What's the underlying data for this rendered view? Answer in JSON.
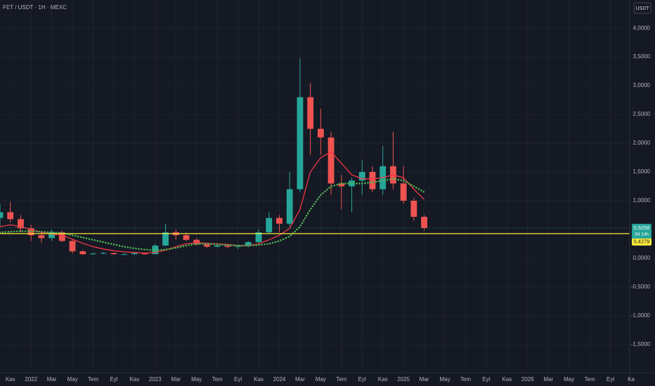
{
  "chart_data": {
    "type": "candlestick",
    "title": "FET / USDT · 1H · MEXC",
    "currency": "USDT",
    "x": [
      "2021-10",
      "2021-11",
      "2021-12",
      "2022-01",
      "2022-02",
      "2022-03",
      "2022-04",
      "2022-05",
      "2022-06",
      "2022-07",
      "2022-08",
      "2022-09",
      "2022-10",
      "2022-11",
      "2022-12",
      "2023-01",
      "2023-02",
      "2023-03",
      "2023-04",
      "2023-05",
      "2023-06",
      "2023-07",
      "2023-08",
      "2023-09",
      "2023-10",
      "2023-11",
      "2023-12",
      "2024-01",
      "2024-02",
      "2024-03",
      "2024-04",
      "2024-05",
      "2024-06",
      "2024-07",
      "2024-08",
      "2024-09",
      "2024-10",
      "2024-11",
      "2024-12",
      "2025-01",
      "2025-02",
      "2025-03"
    ],
    "open": [
      0.7,
      0.8,
      0.68,
      0.52,
      0.4,
      0.35,
      0.45,
      0.3,
      0.12,
      0.07,
      0.08,
      0.09,
      0.07,
      0.07,
      0.09,
      0.07,
      0.22,
      0.45,
      0.4,
      0.32,
      0.24,
      0.2,
      0.22,
      0.2,
      0.21,
      0.28,
      0.45,
      0.7,
      0.6,
      1.2,
      2.8,
      2.25,
      2.1,
      1.3,
      1.25,
      1.35,
      1.5,
      1.2,
      1.6,
      1.3,
      1.0,
      0.72
    ],
    "high": [
      0.95,
      0.98,
      0.75,
      0.58,
      0.45,
      0.5,
      0.48,
      0.32,
      0.14,
      0.1,
      0.11,
      0.1,
      0.09,
      0.1,
      0.1,
      0.25,
      0.6,
      0.5,
      0.45,
      0.35,
      0.26,
      0.26,
      0.24,
      0.22,
      0.3,
      0.5,
      0.8,
      0.75,
      1.5,
      3.48,
      3.05,
      2.6,
      2.2,
      1.45,
      1.4,
      1.7,
      1.6,
      1.95,
      2.2,
      1.6,
      1.05,
      0.75
    ],
    "low": [
      0.55,
      0.62,
      0.45,
      0.3,
      0.27,
      0.3,
      0.28,
      0.08,
      0.06,
      0.06,
      0.07,
      0.06,
      0.06,
      0.06,
      0.06,
      0.07,
      0.21,
      0.32,
      0.3,
      0.22,
      0.18,
      0.19,
      0.17,
      0.16,
      0.19,
      0.26,
      0.42,
      0.45,
      0.55,
      1.15,
      1.8,
      1.8,
      1.1,
      0.85,
      0.8,
      1.1,
      1.15,
      1.1,
      1.2,
      0.95,
      0.65,
      0.48
    ],
    "close": [
      0.8,
      0.68,
      0.52,
      0.4,
      0.35,
      0.45,
      0.3,
      0.12,
      0.07,
      0.08,
      0.09,
      0.07,
      0.07,
      0.09,
      0.07,
      0.22,
      0.45,
      0.4,
      0.32,
      0.24,
      0.2,
      0.22,
      0.2,
      0.21,
      0.28,
      0.45,
      0.7,
      0.6,
      1.2,
      2.8,
      2.25,
      2.1,
      1.3,
      1.25,
      1.35,
      1.5,
      1.2,
      1.6,
      1.3,
      1.0,
      0.72,
      0.5258
    ],
    "up_color": "#26a69a",
    "down_color": "#ef5350",
    "lines": [
      {
        "color": "#f23645",
        "style": "solid",
        "values": [
          0.55,
          0.58,
          0.55,
          0.5,
          0.45,
          0.42,
          0.4,
          0.33,
          0.26,
          0.2,
          0.16,
          0.13,
          0.11,
          0.1,
          0.09,
          0.1,
          0.14,
          0.2,
          0.25,
          0.27,
          0.26,
          0.25,
          0.24,
          0.22,
          0.22,
          0.25,
          0.32,
          0.4,
          0.52,
          0.85,
          1.5,
          1.75,
          1.85,
          1.65,
          1.45,
          1.38,
          1.38,
          1.4,
          1.45,
          1.4,
          1.2,
          1.02
        ]
      },
      {
        "color": "#4caf50",
        "style": "dotted",
        "values": [
          0.45,
          0.46,
          0.47,
          0.47,
          0.46,
          0.45,
          0.44,
          0.4,
          0.36,
          0.32,
          0.28,
          0.24,
          0.2,
          0.17,
          0.15,
          0.14,
          0.15,
          0.18,
          0.22,
          0.25,
          0.25,
          0.24,
          0.23,
          0.22,
          0.22,
          0.23,
          0.25,
          0.3,
          0.38,
          0.55,
          0.85,
          1.1,
          1.25,
          1.3,
          1.3,
          1.3,
          1.32,
          1.35,
          1.38,
          1.35,
          1.25,
          1.15
        ]
      }
    ],
    "price_line": {
      "value": 0.4279,
      "label": "0,4279",
      "color": "#ffeb3b"
    },
    "last_price": {
      "value": 0.5258,
      "label": "0,5258",
      "countdown": "3d 14h",
      "color": "#26a69a"
    },
    "xlim": [
      "2021-10",
      "2026-11"
    ],
    "ylim": [
      -1.99,
      4.49
    ],
    "grid": true,
    "yticks": [
      {
        "value": 4,
        "label": "4,0000"
      },
      {
        "value": 3.5,
        "label": "3,5000"
      },
      {
        "value": 3,
        "label": "3,0000"
      },
      {
        "value": 2.5,
        "label": "2,5000"
      },
      {
        "value": 2,
        "label": "2,0000"
      },
      {
        "value": 1.5,
        "label": "1,5000"
      },
      {
        "value": 1,
        "label": "1,0000"
      },
      {
        "value": 0,
        "label": "0,0000"
      },
      {
        "value": -0.5,
        "label": "-0,5000"
      },
      {
        "value": -1,
        "label": "-1,0000"
      },
      {
        "value": -1.5,
        "label": "-1,5000"
      }
    ],
    "xticks": [
      {
        "value": "2021-11",
        "label": "Kas"
      },
      {
        "value": "2022-01",
        "label": "2022"
      },
      {
        "value": "2022-03",
        "label": "Mar"
      },
      {
        "value": "2022-05",
        "label": "May"
      },
      {
        "value": "2022-07",
        "label": "Tem"
      },
      {
        "value": "2022-09",
        "label": "Eyl"
      },
      {
        "value": "2022-11",
        "label": "Kas"
      },
      {
        "value": "2023-01",
        "label": "2023"
      },
      {
        "value": "2023-03",
        "label": "Mar"
      },
      {
        "value": "2023-05",
        "label": "May"
      },
      {
        "value": "2023-07",
        "label": "Tem"
      },
      {
        "value": "2023-09",
        "label": "Eyl"
      },
      {
        "value": "2023-11",
        "label": "Kas"
      },
      {
        "value": "2024-01",
        "label": "2024"
      },
      {
        "value": "2024-03",
        "label": "Mar"
      },
      {
        "value": "2024-05",
        "label": "May"
      },
      {
        "value": "2024-07",
        "label": "Tem"
      },
      {
        "value": "2024-09",
        "label": "Eyl"
      },
      {
        "value": "2024-11",
        "label": "Kas"
      },
      {
        "value": "2025-01",
        "label": "2025"
      },
      {
        "value": "2025-03",
        "label": "Mar"
      },
      {
        "value": "2025-05",
        "label": "May"
      },
      {
        "value": "2025-07",
        "label": "Tem"
      },
      {
        "value": "2025-09",
        "label": "Eyl"
      },
      {
        "value": "2025-11",
        "label": "Kas"
      },
      {
        "value": "2026-01",
        "label": "2026"
      },
      {
        "value": "2026-03",
        "label": "Mar"
      },
      {
        "value": "2026-05",
        "label": "May"
      },
      {
        "value": "2026-07",
        "label": "Tem"
      },
      {
        "value": "2026-09",
        "label": "Eyl"
      },
      {
        "value": "2026-11",
        "label": "Ka"
      }
    ]
  }
}
